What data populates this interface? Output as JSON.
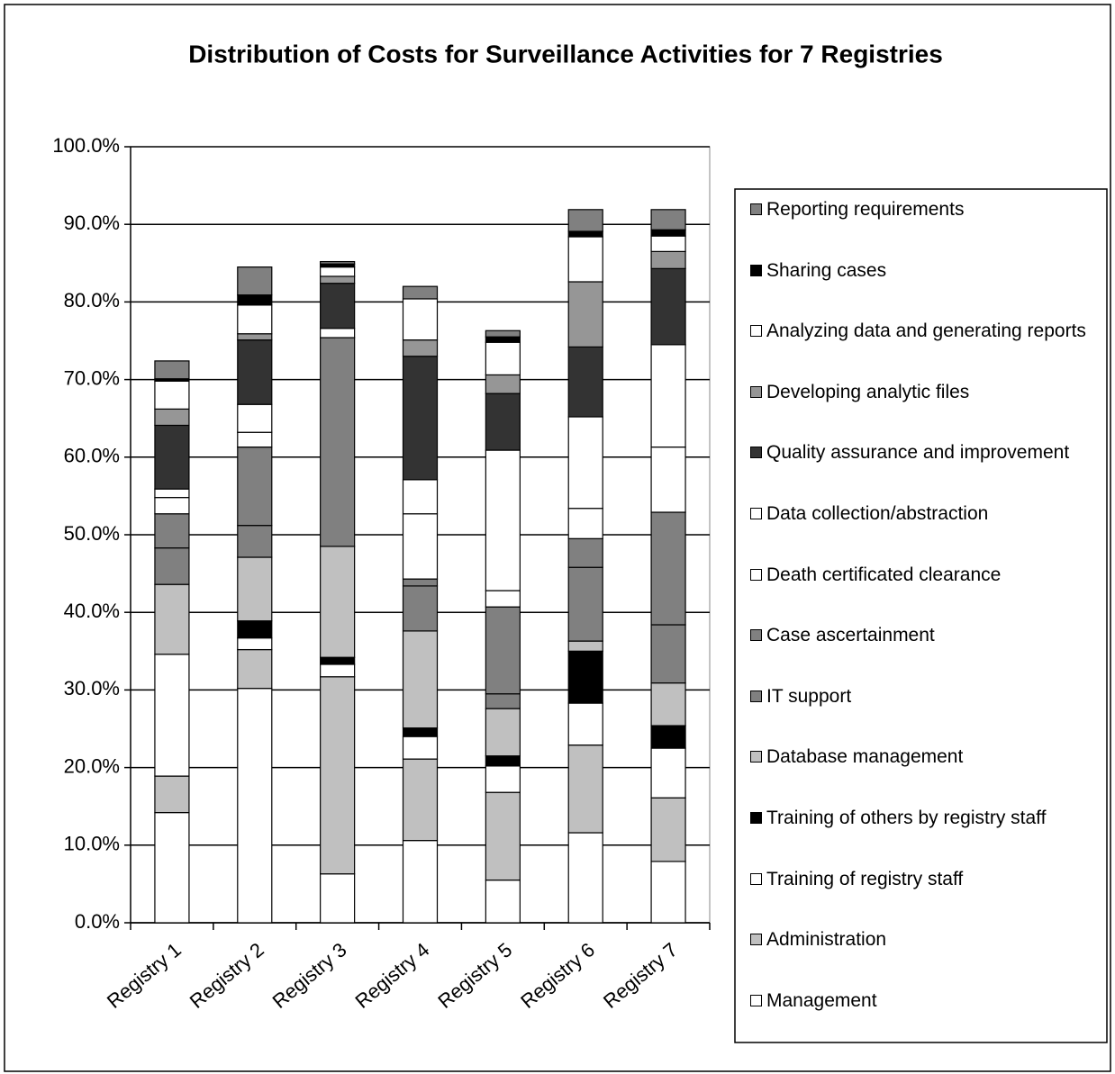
{
  "chart_data": {
    "type": "stacked_bar",
    "title": "Distribution of Costs for Surveillance Activities for 7 Registries",
    "categories": [
      "Registry 1",
      "Registry 2",
      "Registry 3",
      "Registry 4",
      "Registry 5",
      "Registry 6",
      "Registry 7"
    ],
    "ylim": [
      0,
      100
    ],
    "yticks": [
      {
        "value": 0,
        "label": "0.0%"
      },
      {
        "value": 10,
        "label": "10.0%"
      },
      {
        "value": 20,
        "label": "20.0%"
      },
      {
        "value": 30,
        "label": "30.0%"
      },
      {
        "value": 40,
        "label": "40.0%"
      },
      {
        "value": 50,
        "label": "50.0%"
      },
      {
        "value": 60,
        "label": "60.0%"
      },
      {
        "value": 70,
        "label": "70.0%"
      },
      {
        "value": 80,
        "label": "80.0%"
      },
      {
        "value": 90,
        "label": "90.0%"
      },
      {
        "value": 100,
        "label": "100.0%"
      }
    ],
    "grid": true,
    "legend": "right",
    "series": [
      {
        "name": "Management",
        "color": "#ffffff",
        "values": [
          14.2,
          30.2,
          6.3,
          10.6,
          5.5,
          11.6,
          7.9
        ]
      },
      {
        "name": "Administration",
        "color": "#c0c0c0",
        "values": [
          4.7,
          5.0,
          25.4,
          10.5,
          11.3,
          11.3,
          8.2
        ]
      },
      {
        "name": "Training of registry staff",
        "color": "#ffffff",
        "values": [
          15.7,
          1.5,
          1.6,
          2.9,
          3.4,
          5.4,
          6.4
        ]
      },
      {
        "name": "Training of others by registry staff",
        "color": "#000000",
        "values": [
          0,
          2.2,
          0.9,
          1.1,
          1.3,
          6.7,
          2.9
        ]
      },
      {
        "name": "Database management",
        "color": "#c0c0c0",
        "values": [
          9.0,
          8.2,
          14.3,
          12.5,
          6.1,
          1.3,
          5.5
        ]
      },
      {
        "name": "IT support",
        "color": "#808080",
        "values": [
          4.7,
          4.1,
          0,
          5.8,
          1.9,
          9.5,
          7.5
        ]
      },
      {
        "name": "Case ascertainment",
        "color": "#808080",
        "values": [
          4.4,
          10.1,
          26.9,
          0.9,
          11.2,
          3.7,
          14.5
        ]
      },
      {
        "name": "Death certificated clearance",
        "color": "#ffffff",
        "values": [
          2.1,
          1.9,
          0,
          8.4,
          2.1,
          3.9,
          8.4
        ]
      },
      {
        "name": "Data collection/abstraction",
        "color": "#ffffff",
        "values": [
          1.1,
          3.6,
          1.2,
          4.4,
          18.1,
          11.8,
          13.2
        ]
      },
      {
        "name": "Quality assurance and improvement",
        "color": "#333333",
        "values": [
          8.2,
          8.3,
          5.8,
          15.9,
          7.3,
          9.0,
          9.8
        ]
      },
      {
        "name": "Developing analytic files",
        "color": "#969696",
        "values": [
          2.1,
          0.8,
          0.9,
          2.1,
          2.4,
          8.4,
          2.2
        ]
      },
      {
        "name": "Analyzing data and generating reports",
        "color": "#ffffff",
        "values": [
          3.6,
          3.7,
          1.2,
          5.3,
          4.2,
          5.8,
          2.0
        ]
      },
      {
        "name": "Sharing cases",
        "color": "#000000",
        "values": [
          0.3,
          1.3,
          0.4,
          0,
          0.7,
          0.7,
          0.8
        ]
      },
      {
        "name": "Reporting requirements",
        "color": "#808080",
        "values": [
          2.3,
          3.6,
          0.3,
          1.6,
          0.8,
          2.8,
          2.6
        ]
      }
    ]
  }
}
